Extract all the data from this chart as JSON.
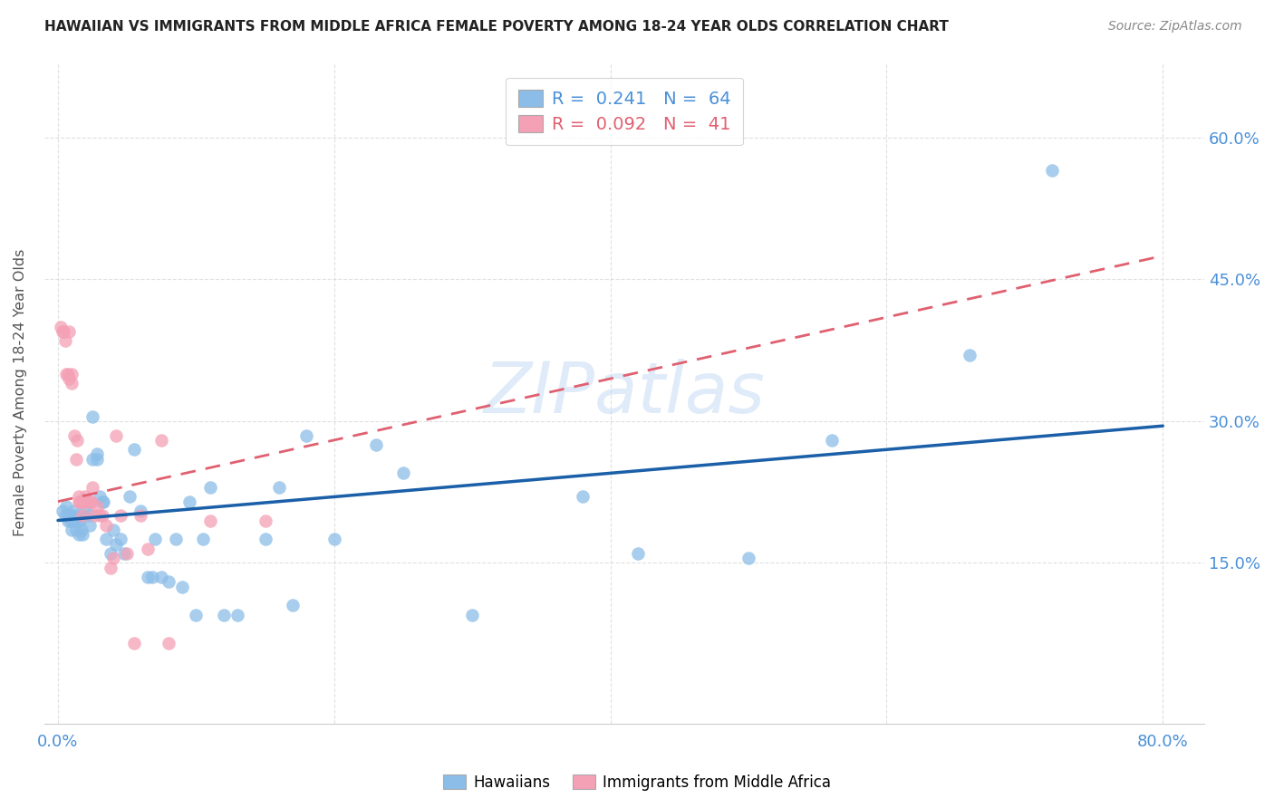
{
  "title": "HAWAIIAN VS IMMIGRANTS FROM MIDDLE AFRICA FEMALE POVERTY AMONG 18-24 YEAR OLDS CORRELATION CHART",
  "source": "Source: ZipAtlas.com",
  "ylabel": "Female Poverty Among 18-24 Year Olds",
  "xlim": [
    -0.01,
    0.83
  ],
  "ylim": [
    -0.02,
    0.68
  ],
  "xticks": [
    0.0,
    0.2,
    0.4,
    0.6,
    0.8
  ],
  "yticks": [
    0.15,
    0.3,
    0.45,
    0.6
  ],
  "xticklabels": [
    "0.0%",
    "",
    "",
    "",
    "80.0%"
  ],
  "yticklabels_right": [
    "15.0%",
    "30.0%",
    "45.0%",
    "60.0%"
  ],
  "hawaiians_color": "#8bbde8",
  "immigrants_color": "#f4a0b5",
  "trend_hawaiians_color": "#1a5fa8",
  "trend_immigrants_color": "#e06070",
  "R_hawaiians": 0.241,
  "N_hawaiians": 64,
  "R_immigrants": 0.092,
  "N_immigrants": 41,
  "legend_label_hawaiians": "Hawaiians",
  "legend_label_immigrants": "Immigrants from Middle Africa",
  "watermark": "ZIPatlas",
  "trend_h_x0": 0.0,
  "trend_h_y0": 0.195,
  "trend_h_x1": 0.8,
  "trend_h_y1": 0.295,
  "trend_i_x0": 0.0,
  "trend_i_y0": 0.215,
  "trend_i_x1": 0.8,
  "trend_i_y1": 0.475,
  "hawaiians_x": [
    0.003,
    0.005,
    0.006,
    0.007,
    0.008,
    0.009,
    0.01,
    0.01,
    0.011,
    0.012,
    0.013,
    0.014,
    0.015,
    0.015,
    0.016,
    0.017,
    0.018,
    0.018,
    0.02,
    0.022,
    0.023,
    0.025,
    0.025,
    0.028,
    0.028,
    0.03,
    0.032,
    0.033,
    0.035,
    0.038,
    0.04,
    0.042,
    0.045,
    0.048,
    0.052,
    0.055,
    0.06,
    0.065,
    0.068,
    0.07,
    0.075,
    0.08,
    0.085,
    0.09,
    0.095,
    0.1,
    0.105,
    0.11,
    0.12,
    0.13,
    0.15,
    0.16,
    0.17,
    0.18,
    0.2,
    0.23,
    0.25,
    0.3,
    0.38,
    0.42,
    0.5,
    0.56,
    0.66,
    0.72
  ],
  "hawaiians_y": [
    0.205,
    0.2,
    0.21,
    0.195,
    0.2,
    0.195,
    0.2,
    0.185,
    0.205,
    0.195,
    0.185,
    0.2,
    0.195,
    0.18,
    0.195,
    0.185,
    0.2,
    0.18,
    0.205,
    0.2,
    0.19,
    0.26,
    0.305,
    0.26,
    0.265,
    0.22,
    0.215,
    0.215,
    0.175,
    0.16,
    0.185,
    0.17,
    0.175,
    0.16,
    0.22,
    0.27,
    0.205,
    0.135,
    0.135,
    0.175,
    0.135,
    0.13,
    0.175,
    0.125,
    0.215,
    0.095,
    0.175,
    0.23,
    0.095,
    0.095,
    0.175,
    0.23,
    0.105,
    0.285,
    0.175,
    0.275,
    0.245,
    0.095,
    0.22,
    0.16,
    0.155,
    0.28,
    0.37,
    0.565
  ],
  "immigrants_x": [
    0.002,
    0.003,
    0.004,
    0.005,
    0.006,
    0.007,
    0.008,
    0.008,
    0.01,
    0.01,
    0.012,
    0.013,
    0.014,
    0.015,
    0.015,
    0.016,
    0.018,
    0.018,
    0.02,
    0.02,
    0.022,
    0.023,
    0.024,
    0.025,
    0.026,
    0.028,
    0.03,
    0.032,
    0.035,
    0.038,
    0.04,
    0.042,
    0.045,
    0.05,
    0.055,
    0.06,
    0.065,
    0.075,
    0.08,
    0.11,
    0.15
  ],
  "immigrants_y": [
    0.4,
    0.395,
    0.395,
    0.385,
    0.35,
    0.35,
    0.345,
    0.395,
    0.34,
    0.35,
    0.285,
    0.26,
    0.28,
    0.22,
    0.215,
    0.215,
    0.215,
    0.2,
    0.22,
    0.215,
    0.215,
    0.215,
    0.215,
    0.23,
    0.2,
    0.21,
    0.2,
    0.2,
    0.19,
    0.145,
    0.155,
    0.285,
    0.2,
    0.16,
    0.065,
    0.2,
    0.165,
    0.28,
    0.065,
    0.195,
    0.195
  ]
}
